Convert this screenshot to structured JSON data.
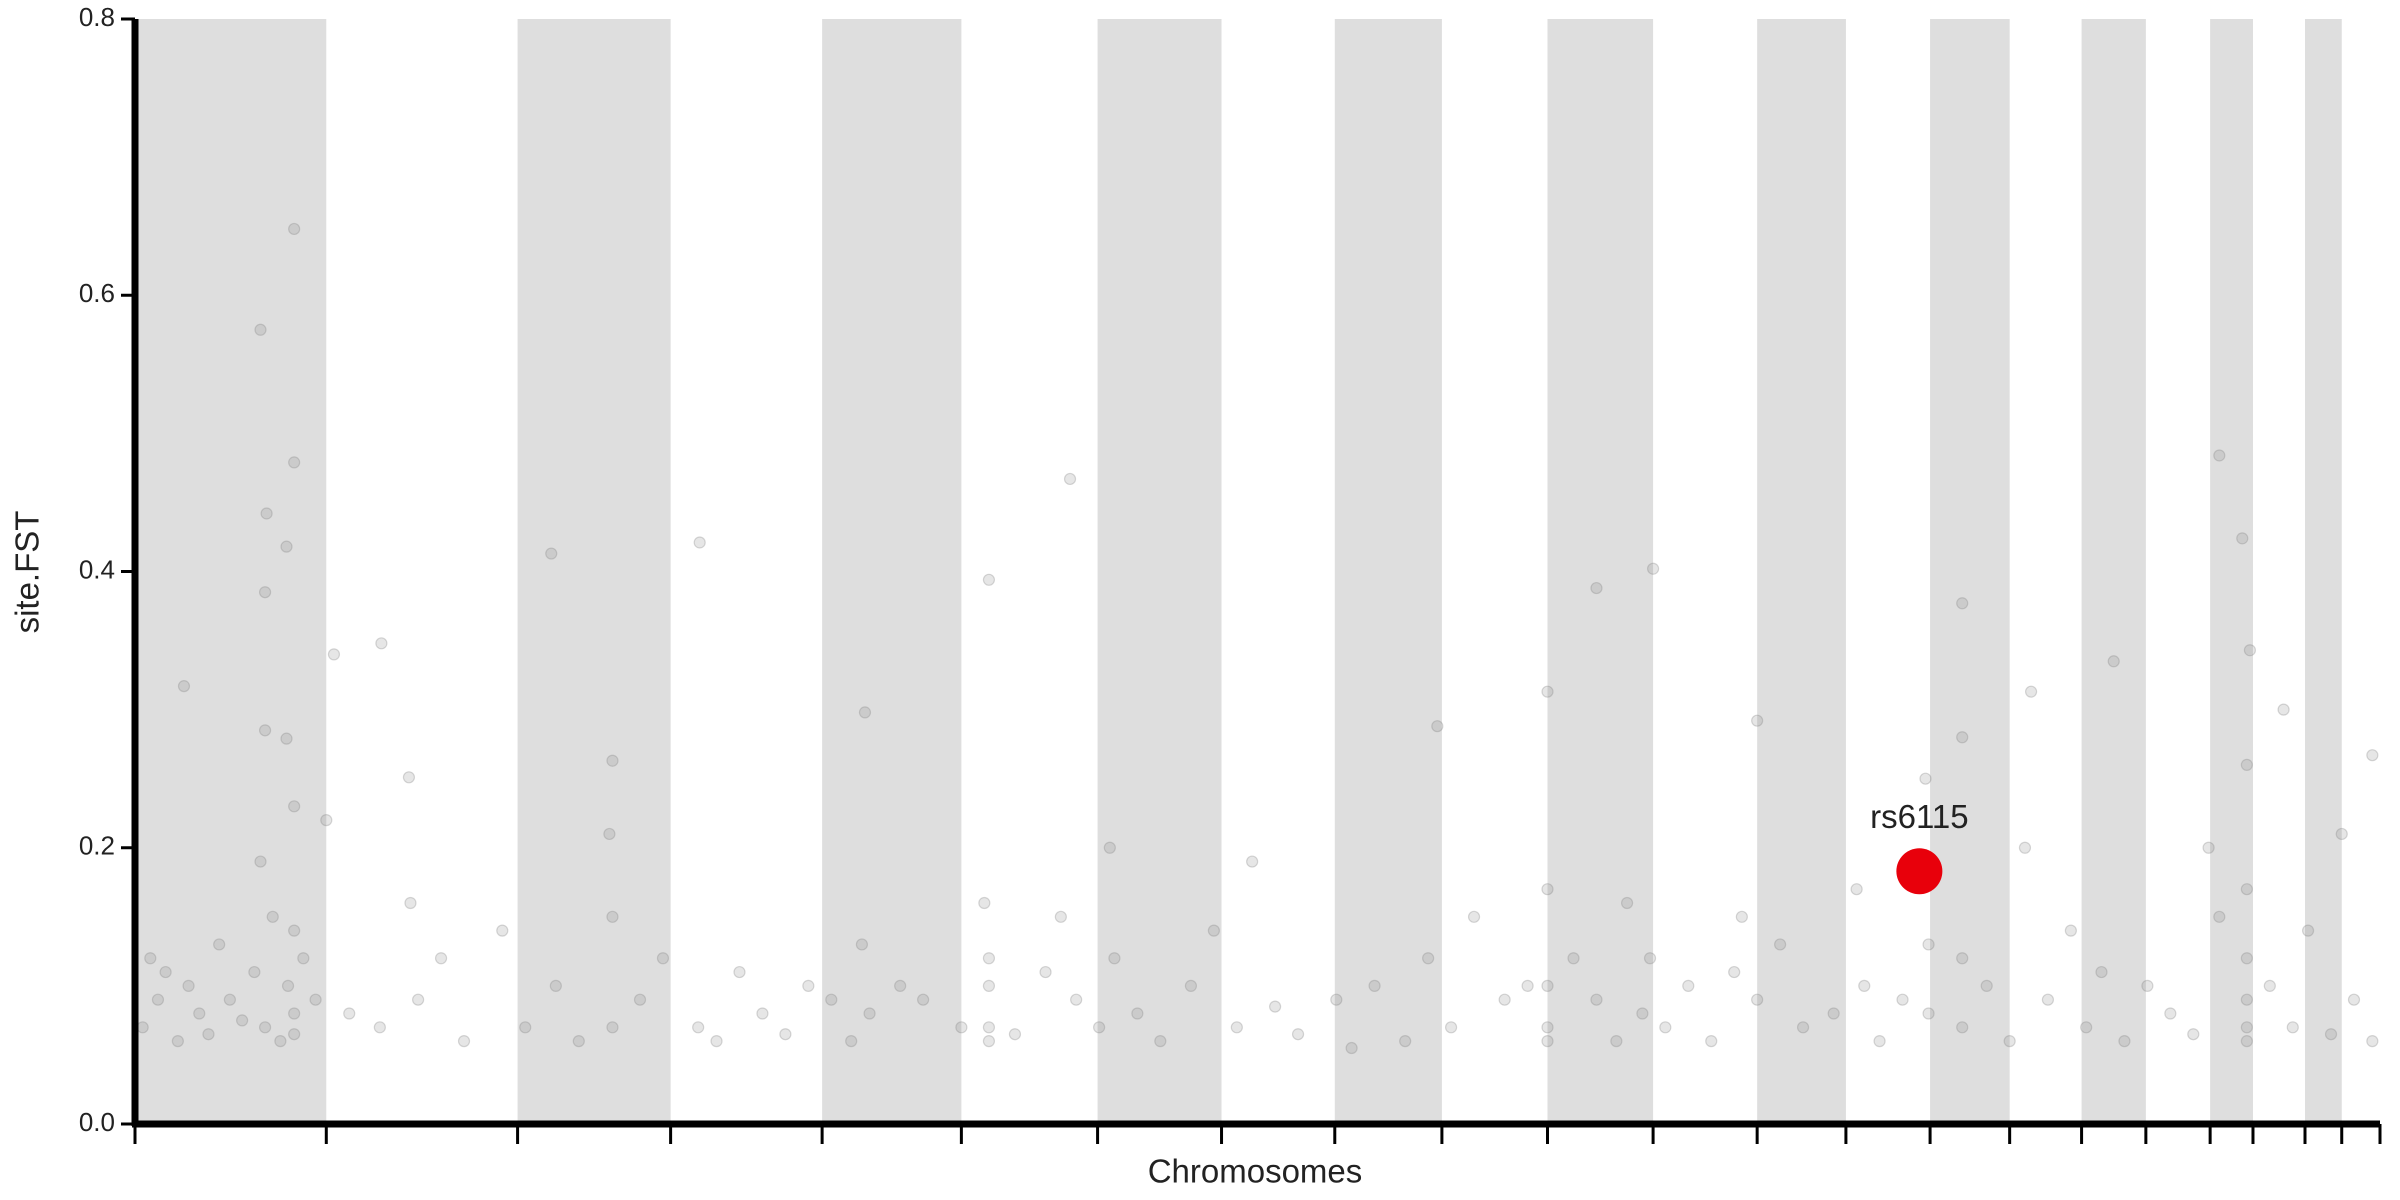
{
  "chart_data": {
    "type": "scatter",
    "xlabel": "Chromosomes",
    "ylabel": "site.FST",
    "ylim": [
      0,
      0.8
    ],
    "yticks": [
      {
        "value": 0,
        "label": "0.0"
      },
      0.2,
      0.4,
      0.6,
      0.8
    ],
    "xlim": [
      0,
      1467
    ],
    "xticks": [
      0,
      125,
      250,
      350,
      449,
      540,
      629,
      710,
      784,
      854,
      923,
      992,
      1060,
      1118,
      1173,
      1225,
      1272,
      1314,
      1356,
      1384,
      1418,
      1442,
      1467
    ],
    "shade_alternate": true,
    "band_color": "#dedede",
    "points": {
      "color": "#808080",
      "opacity": 0.2,
      "x": [
        82,
        104,
        104,
        86,
        99,
        85,
        85,
        99,
        130,
        161,
        272,
        369,
        611,
        558,
        992,
        955,
        1362,
        1377,
        1382,
        1194,
        1239,
        1293,
        1404,
        32,
        179,
        312,
        477,
        923,
        851,
        1060,
        1462,
        5,
        10,
        15,
        20,
        28,
        35,
        42,
        48,
        55,
        62,
        70,
        78,
        82,
        85,
        90,
        95,
        100,
        104,
        104,
        104,
        104,
        110,
        118,
        125,
        140,
        160,
        180,
        185,
        200,
        215,
        240,
        255,
        275,
        290,
        310,
        312,
        312,
        330,
        345,
        368,
        380,
        395,
        410,
        425,
        440,
        455,
        468,
        475,
        480,
        500,
        515,
        540,
        555,
        558,
        558,
        558,
        558,
        575,
        595,
        605,
        615,
        630,
        637,
        640,
        655,
        670,
        690,
        705,
        720,
        730,
        745,
        760,
        785,
        795,
        810,
        830,
        845,
        860,
        875,
        895,
        910,
        923,
        923,
        923,
        923,
        940,
        955,
        968,
        975,
        985,
        990,
        1000,
        1015,
        1030,
        1045,
        1050,
        1060,
        1075,
        1090,
        1110,
        1125,
        1130,
        1140,
        1155,
        1170,
        1172,
        1172,
        1194,
        1194,
        1194,
        1210,
        1225,
        1235,
        1250,
        1265,
        1275,
        1285,
        1300,
        1315,
        1330,
        1345,
        1355,
        1362,
        1380,
        1380,
        1380,
        1380,
        1380,
        1380,
        1395,
        1410,
        1420,
        1435,
        1442,
        1450,
        1462
      ],
      "y": [
        0.575,
        0.648,
        0.479,
        0.442,
        0.418,
        0.385,
        0.285,
        0.279,
        0.34,
        0.348,
        0.413,
        0.421,
        0.467,
        0.394,
        0.402,
        0.388,
        0.484,
        0.424,
        0.343,
        0.377,
        0.313,
        0.335,
        0.3,
        0.317,
        0.251,
        0.263,
        0.298,
        0.313,
        0.288,
        0.292,
        0.267,
        0.07,
        0.12,
        0.09,
        0.11,
        0.06,
        0.1,
        0.08,
        0.065,
        0.13,
        0.09,
        0.075,
        0.11,
        0.19,
        0.07,
        0.15,
        0.06,
        0.1,
        0.23,
        0.14,
        0.08,
        0.065,
        0.12,
        0.09,
        0.22,
        0.08,
        0.07,
        0.16,
        0.09,
        0.12,
        0.06,
        0.14,
        0.07,
        0.1,
        0.06,
        0.21,
        0.15,
        0.07,
        0.09,
        0.12,
        0.07,
        0.06,
        0.11,
        0.08,
        0.065,
        0.1,
        0.09,
        0.06,
        0.13,
        0.08,
        0.1,
        0.09,
        0.07,
        0.16,
        0.12,
        0.1,
        0.07,
        0.06,
        0.065,
        0.11,
        0.15,
        0.09,
        0.07,
        0.2,
        0.12,
        0.08,
        0.06,
        0.1,
        0.14,
        0.07,
        0.19,
        0.085,
        0.065,
        0.09,
        0.055,
        0.1,
        0.06,
        0.12,
        0.07,
        0.15,
        0.09,
        0.1,
        0.17,
        0.1,
        0.07,
        0.06,
        0.12,
        0.09,
        0.06,
        0.16,
        0.08,
        0.12,
        0.07,
        0.1,
        0.06,
        0.11,
        0.15,
        0.09,
        0.13,
        0.07,
        0.08,
        0.17,
        0.1,
        0.06,
        0.09,
        0.25,
        0.13,
        0.08,
        0.28,
        0.12,
        0.07,
        0.1,
        0.06,
        0.2,
        0.09,
        0.14,
        0.07,
        0.11,
        0.06,
        0.1,
        0.08,
        0.065,
        0.2,
        0.15,
        0.26,
        0.17,
        0.12,
        0.09,
        0.07,
        0.06,
        0.1,
        0.07,
        0.14,
        0.065,
        0.21,
        0.09,
        0.06
      ]
    },
    "highlight": {
      "label": "rs6115",
      "x": 1166,
      "y": 0.183,
      "color": "#e8000b"
    }
  }
}
